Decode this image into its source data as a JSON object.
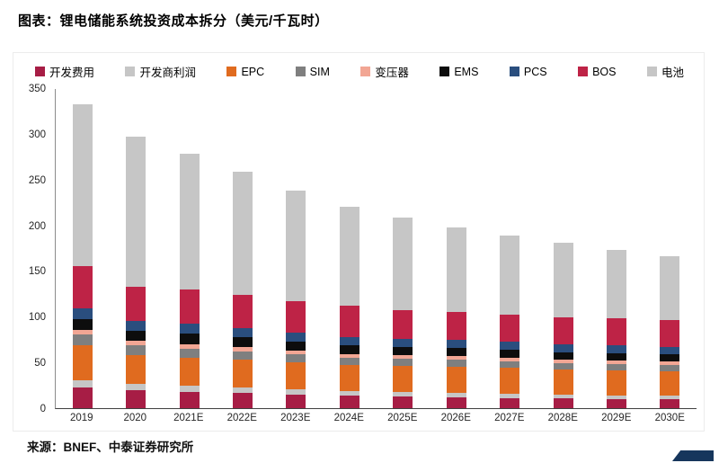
{
  "page": {
    "title": "图表：锂电储能系统投资成本拆分（美元/千瓦时）",
    "source": "来源：BNEF、中泰证券研究所"
  },
  "chart_data": {
    "type": "bar",
    "stacked": true,
    "title": "锂电储能系统投资成本拆分（美元/千瓦时）",
    "xlabel": "",
    "ylabel": "",
    "ylim": [
      0,
      350
    ],
    "yticks": [
      0,
      50,
      100,
      150,
      200,
      250,
      300,
      350
    ],
    "grid": false,
    "legend_position": "top",
    "categories": [
      "2019",
      "2020",
      "2021E",
      "2022E",
      "2023E",
      "2024E",
      "2025E",
      "2026E",
      "2027E",
      "2028E",
      "2029E",
      "2030E"
    ],
    "series": [
      {
        "name": "开发费用",
        "color": "#A71D45",
        "values": [
          23,
          20,
          18,
          17,
          15,
          14,
          13,
          12,
          11,
          11,
          10,
          10
        ]
      },
      {
        "name": "开发商利润",
        "color": "#C6C6C6",
        "values": [
          8,
          7,
          7,
          6,
          6,
          5,
          5,
          5,
          5,
          4,
          4,
          4
        ]
      },
      {
        "name": "EPC",
        "color": "#E06B1F",
        "values": [
          38,
          31,
          30,
          30,
          29,
          28,
          28,
          28,
          28,
          27,
          27,
          26
        ]
      },
      {
        "name": "SIM",
        "color": "#7F7F7F",
        "values": [
          12,
          11,
          10,
          9,
          9,
          8,
          8,
          8,
          7,
          7,
          7,
          7
        ]
      },
      {
        "name": "变压器",
        "color": "#F2A694",
        "values": [
          5,
          5,
          5,
          5,
          4,
          4,
          4,
          4,
          4,
          4,
          4,
          4
        ]
      },
      {
        "name": "EMS",
        "color": "#0D0D0D",
        "values": [
          12,
          11,
          12,
          11,
          10,
          10,
          9,
          9,
          9,
          8,
          8,
          8
        ]
      },
      {
        "name": "PCS",
        "color": "#2A4E7E",
        "values": [
          12,
          11,
          11,
          10,
          10,
          9,
          9,
          9,
          9,
          9,
          9,
          8
        ]
      },
      {
        "name": "BOS",
        "color": "#BE2346",
        "values": [
          46,
          37,
          37,
          36,
          34,
          34,
          32,
          31,
          30,
          30,
          30,
          30
        ]
      },
      {
        "name": "电池",
        "color": "#C6C6C6",
        "values": [
          177,
          165,
          149,
          135,
          122,
          109,
          101,
          92,
          86,
          81,
          75,
          70
        ]
      }
    ],
    "totals": [
      333,
      298,
      279,
      259,
      239,
      221,
      209,
      198,
      189,
      181,
      174,
      167
    ]
  }
}
